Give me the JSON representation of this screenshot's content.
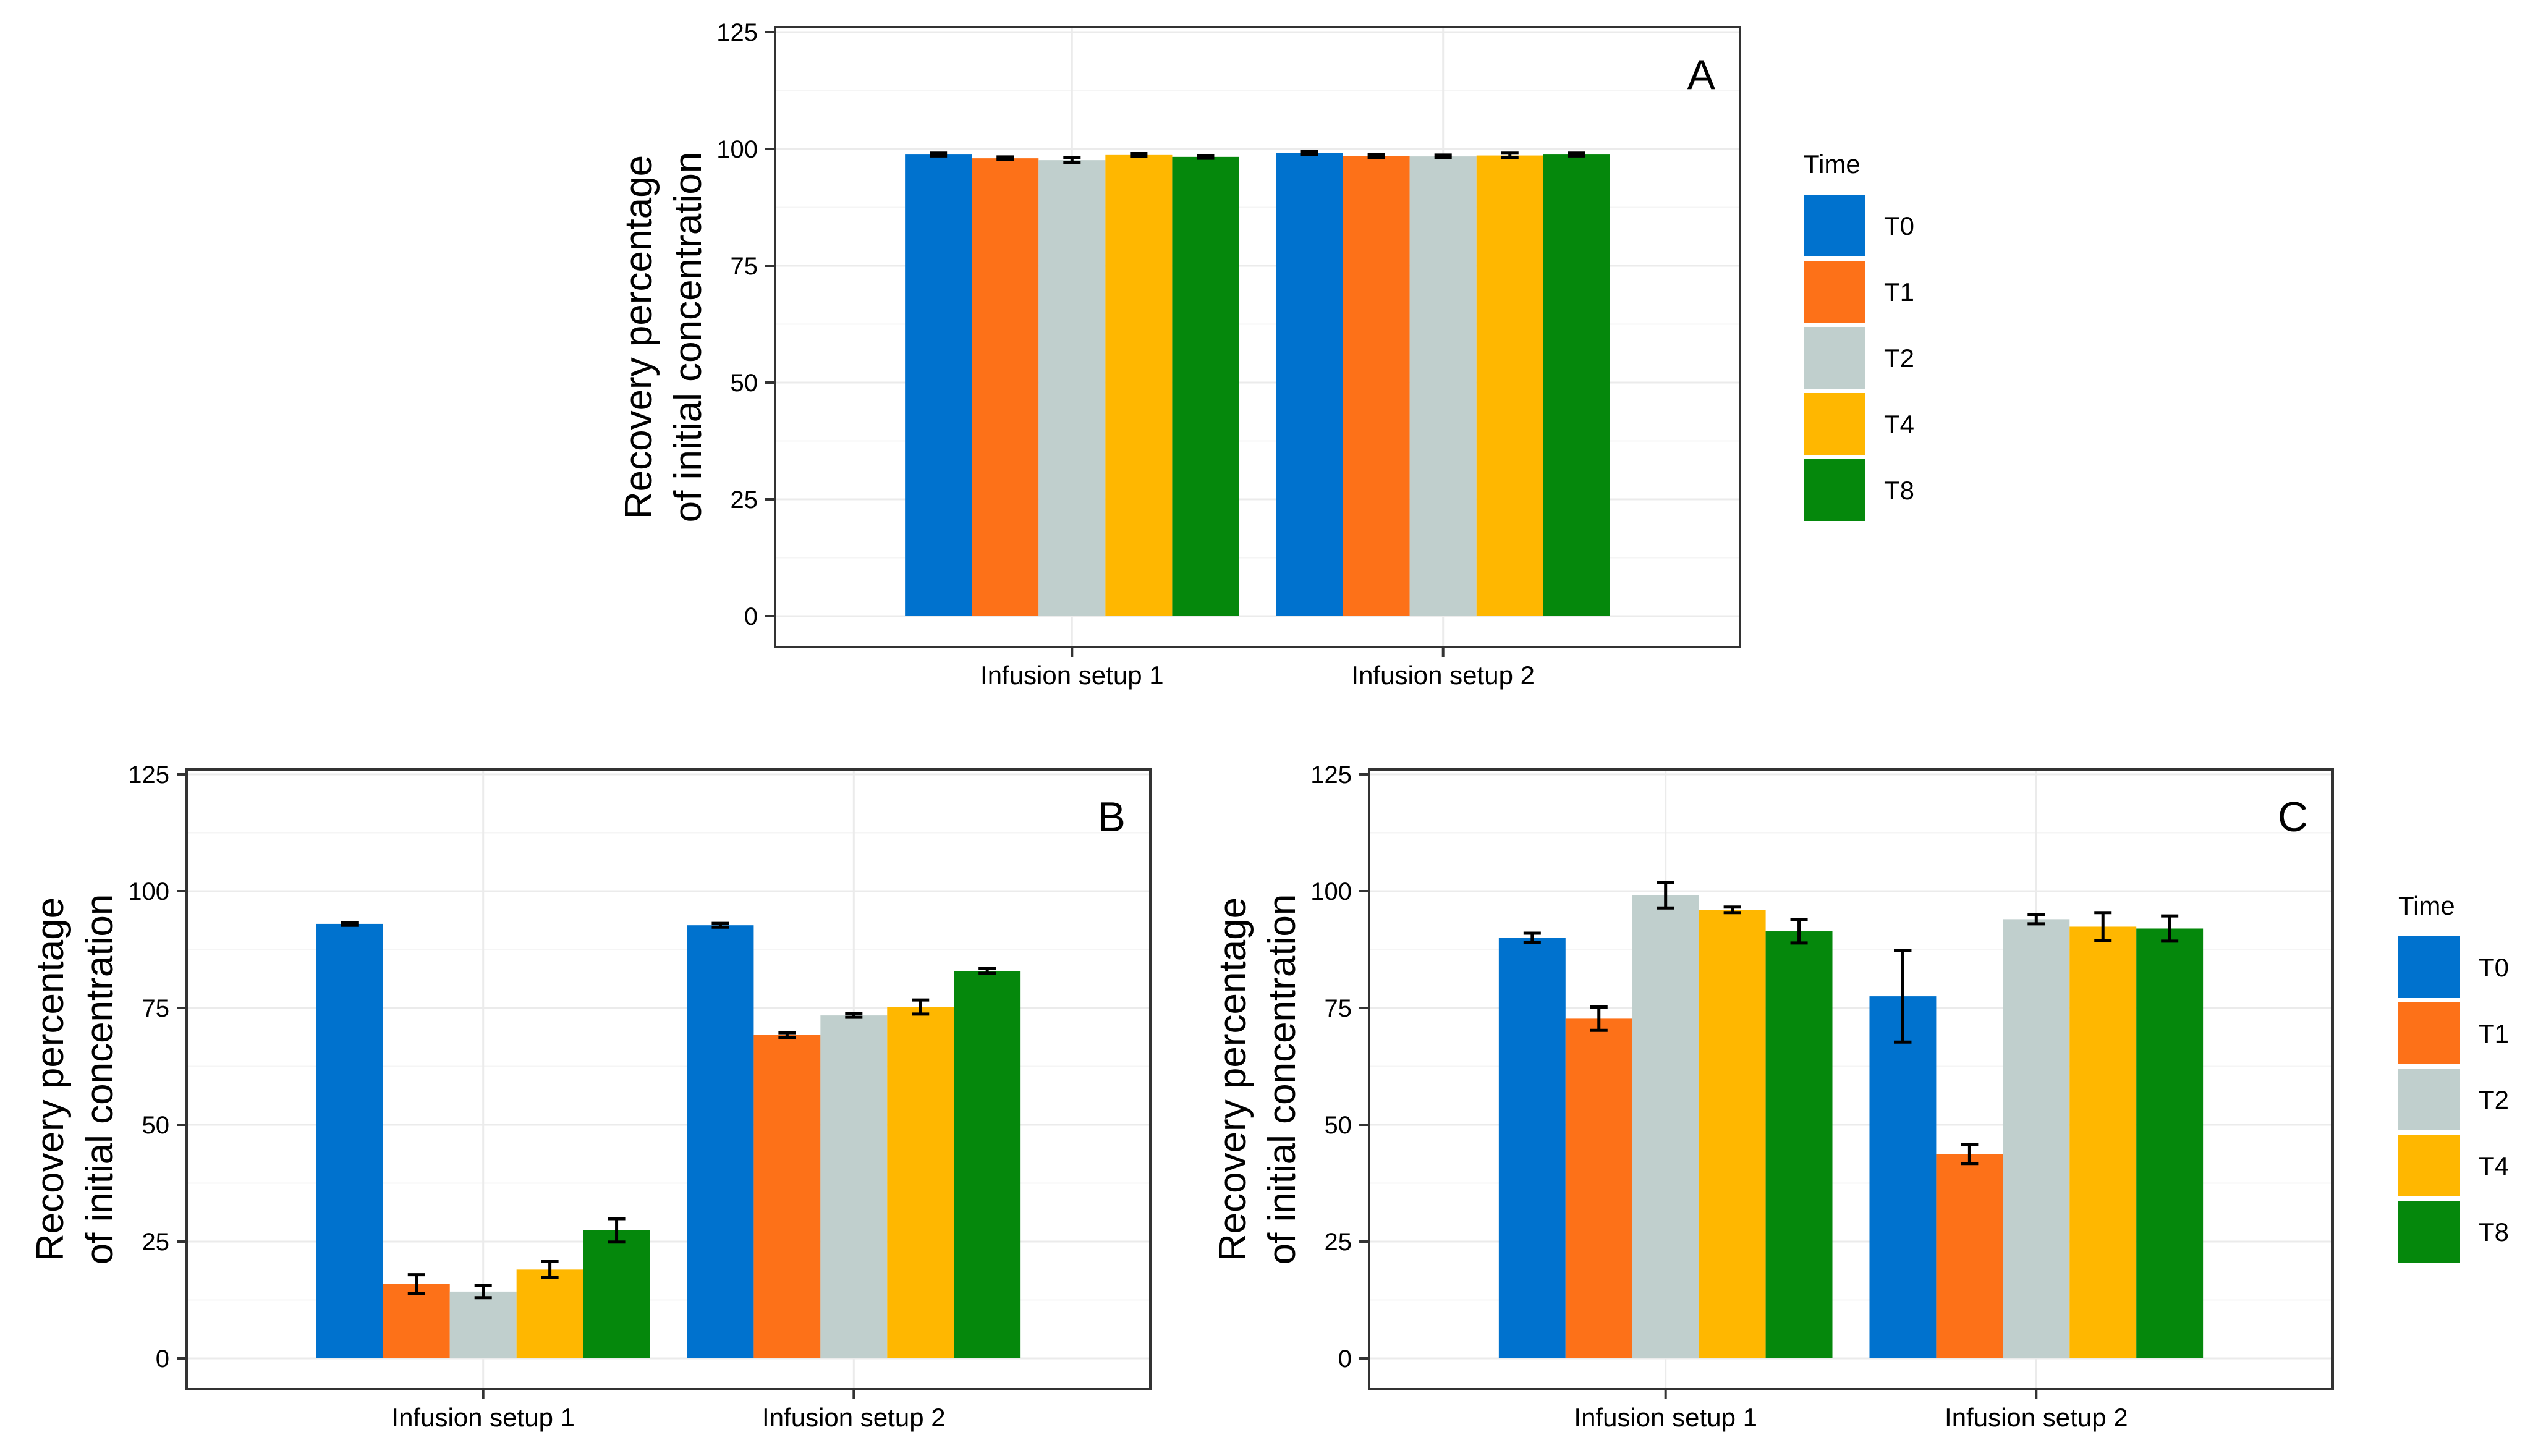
{
  "chart_data": [
    {
      "type": "bar",
      "panel": "A",
      "categories": [
        "Infusion setup 1",
        "Infusion setup 2"
      ],
      "series": [
        {
          "name": "T0",
          "values": [
            98.8,
            99.1
          ],
          "errors": [
            0.3,
            0.3
          ]
        },
        {
          "name": "T1",
          "values": [
            98.0,
            98.5
          ],
          "errors": [
            0.3,
            0.3
          ]
        },
        {
          "name": "T2",
          "values": [
            97.6,
            98.4
          ],
          "errors": [
            0.5,
            0.3
          ]
        },
        {
          "name": "T4",
          "values": [
            98.7,
            98.6
          ],
          "errors": [
            0.3,
            0.5
          ]
        },
        {
          "name": "T8",
          "values": [
            98.3,
            98.8
          ],
          "errors": [
            0.3,
            0.3
          ]
        }
      ],
      "ylabel": [
        "Recovery percentage",
        "of initial concentration"
      ],
      "ylim": [
        0,
        125
      ],
      "yticks": [
        "0",
        "25",
        "50",
        "75",
        "100",
        "125"
      ],
      "legend": "right",
      "legend_title": "Time"
    },
    {
      "type": "bar",
      "panel": "B",
      "categories": [
        "Infusion setup 1",
        "Infusion setup 2"
      ],
      "series": [
        {
          "name": "T0",
          "values": [
            93.0,
            92.7
          ],
          "errors": [
            0.3,
            0.4
          ]
        },
        {
          "name": "T1",
          "values": [
            15.9,
            69.2
          ],
          "errors": [
            2.0,
            0.5
          ]
        },
        {
          "name": "T2",
          "values": [
            14.3,
            73.4
          ],
          "errors": [
            1.3,
            0.4
          ]
        },
        {
          "name": "T4",
          "values": [
            19.0,
            75.2
          ],
          "errors": [
            1.7,
            1.5
          ]
        },
        {
          "name": "T8",
          "values": [
            27.4,
            82.9
          ],
          "errors": [
            2.5,
            0.5
          ]
        }
      ],
      "ylabel": [
        "Recovery percentage",
        "of initial concentration"
      ],
      "ylim": [
        0,
        125
      ],
      "yticks": [
        "0",
        "25",
        "50",
        "75",
        "100",
        "125"
      ],
      "legend": "none"
    },
    {
      "type": "bar",
      "panel": "C",
      "categories": [
        "Infusion setup 1",
        "Infusion setup 2"
      ],
      "series": [
        {
          "name": "T0",
          "values": [
            90.0,
            77.5
          ],
          "errors": [
            1.0,
            9.8
          ]
        },
        {
          "name": "T1",
          "values": [
            72.7,
            43.7
          ],
          "errors": [
            2.5,
            2.0
          ]
        },
        {
          "name": "T2",
          "values": [
            99.1,
            94.0
          ],
          "errors": [
            2.7,
            1.0
          ]
        },
        {
          "name": "T4",
          "values": [
            96.0,
            92.4
          ],
          "errors": [
            0.6,
            3.0
          ]
        },
        {
          "name": "T8",
          "values": [
            91.4,
            92.0
          ],
          "errors": [
            2.5,
            2.7
          ]
        }
      ],
      "ylabel": [
        "Recovery percentage",
        "of initial concentration"
      ],
      "ylim": [
        0,
        125
      ],
      "yticks": [
        "0",
        "25",
        "50",
        "75",
        "100",
        "125"
      ],
      "legend": "right",
      "legend_title": "Time"
    }
  ],
  "colors": {
    "T0": "#0072ce",
    "T1": "#fd7118",
    "T2": "#c0cfcd",
    "T4": "#ffb700",
    "T8": "#05880c"
  }
}
